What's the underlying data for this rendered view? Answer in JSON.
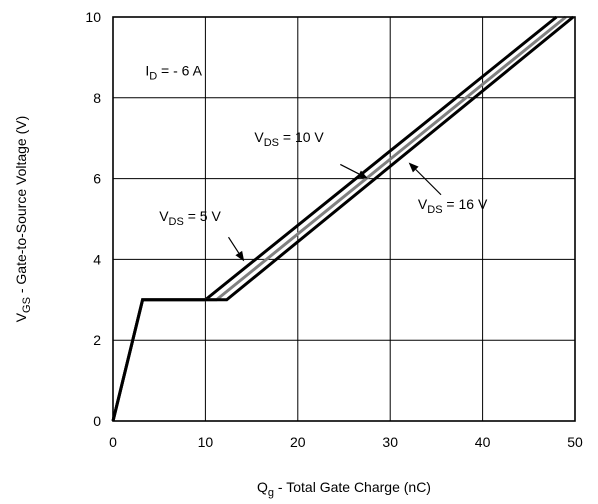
{
  "chart_data": {
    "type": "line",
    "xlabel_main": "Q",
    "xlabel_sub": "g",
    "xlabel_rest": " - Total Gate Charge (nC)",
    "ylabel_main": "V",
    "ylabel_sub": "GS",
    "ylabel_rest": " - Gate-to-Source Voltage (V)",
    "xlim": [
      0,
      50
    ],
    "ylim": [
      0,
      10
    ],
    "xticks": [
      "0",
      "10",
      "20",
      "30",
      "40",
      "50"
    ],
    "yticks": [
      "0",
      "2",
      "4",
      "6",
      "8",
      "10"
    ],
    "grid": true,
    "series": [
      {
        "name": "VDS = 5 V",
        "color": "#000000",
        "points": [
          [
            0,
            0
          ],
          [
            3.2,
            3.0
          ],
          [
            10,
            3.0
          ],
          [
            48,
            10
          ]
        ]
      },
      {
        "name": "VDS = 10 V",
        "color": "#808080",
        "points": [
          [
            0,
            0
          ],
          [
            3.2,
            3.0
          ],
          [
            11.2,
            3.0
          ],
          [
            49,
            10
          ]
        ]
      },
      {
        "name": "VDS = 16 V",
        "color": "#000000",
        "points": [
          [
            0,
            0
          ],
          [
            3.2,
            3.0
          ],
          [
            12.3,
            3.0
          ],
          [
            49.8,
            10
          ]
        ]
      }
    ],
    "annotations": {
      "id_label": {
        "main": "I",
        "sub": "D",
        "rest": " = - 6 A",
        "x": 3.5,
        "y": 8.55
      },
      "vds5": {
        "main": "V",
        "sub": "DS",
        "rest": " = 5 V",
        "x": 5.0,
        "y": 4.95,
        "arrow_from": [
          12.5,
          4.55
        ],
        "arrow_to": [
          14.2,
          3.95
        ]
      },
      "vds10": {
        "main": "V",
        "sub": "DS",
        "rest": " = 10 V",
        "x": 15.3,
        "y": 6.9,
        "arrow_from": [
          24.6,
          6.35
        ],
        "arrow_to": [
          27.6,
          6.0
        ]
      },
      "vds16": {
        "main": "V",
        "sub": "DS",
        "rest": " = 16 V",
        "x": 33.0,
        "y": 5.25,
        "arrow_from": [
          35.5,
          5.6
        ],
        "arrow_to": [
          32.0,
          6.4
        ]
      }
    }
  }
}
